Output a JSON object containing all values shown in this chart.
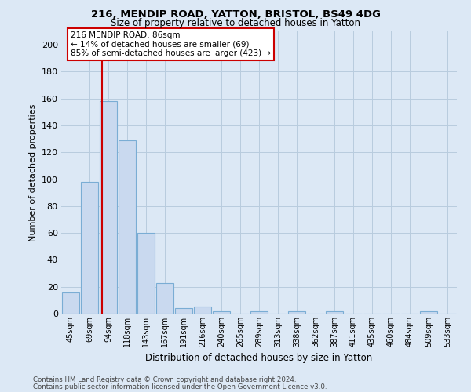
{
  "title1": "216, MENDIP ROAD, YATTON, BRISTOL, BS49 4DG",
  "title2": "Size of property relative to detached houses in Yatton",
  "xlabel": "Distribution of detached houses by size in Yatton",
  "ylabel": "Number of detached properties",
  "categories": [
    "45sqm",
    "69sqm",
    "94sqm",
    "118sqm",
    "143sqm",
    "167sqm",
    "191sqm",
    "216sqm",
    "240sqm",
    "265sqm",
    "289sqm",
    "313sqm",
    "338sqm",
    "362sqm",
    "387sqm",
    "411sqm",
    "435sqm",
    "460sqm",
    "484sqm",
    "509sqm",
    "533sqm"
  ],
  "values": [
    16,
    98,
    158,
    129,
    60,
    23,
    4,
    5,
    2,
    0,
    2,
    0,
    2,
    0,
    2,
    0,
    0,
    0,
    0,
    2,
    0
  ],
  "bar_color": "#c9d9ef",
  "bar_edge_color": "#7aadd4",
  "red_line_x": 1.68,
  "annotation_line1": "216 MENDIP ROAD: 86sqm",
  "annotation_line2": "← 14% of detached houses are smaller (69)",
  "annotation_line3": "85% of semi-detached houses are larger (423) →",
  "annotation_box_color": "#cc0000",
  "ylim": [
    0,
    210
  ],
  "yticks": [
    0,
    20,
    40,
    60,
    80,
    100,
    120,
    140,
    160,
    180,
    200
  ],
  "footer1": "Contains HM Land Registry data © Crown copyright and database right 2024.",
  "footer2": "Contains public sector information licensed under the Open Government Licence v3.0.",
  "bg_color": "#dce8f5",
  "plot_bg_color": "#dce8f5",
  "grid_color": "#b8ccde"
}
